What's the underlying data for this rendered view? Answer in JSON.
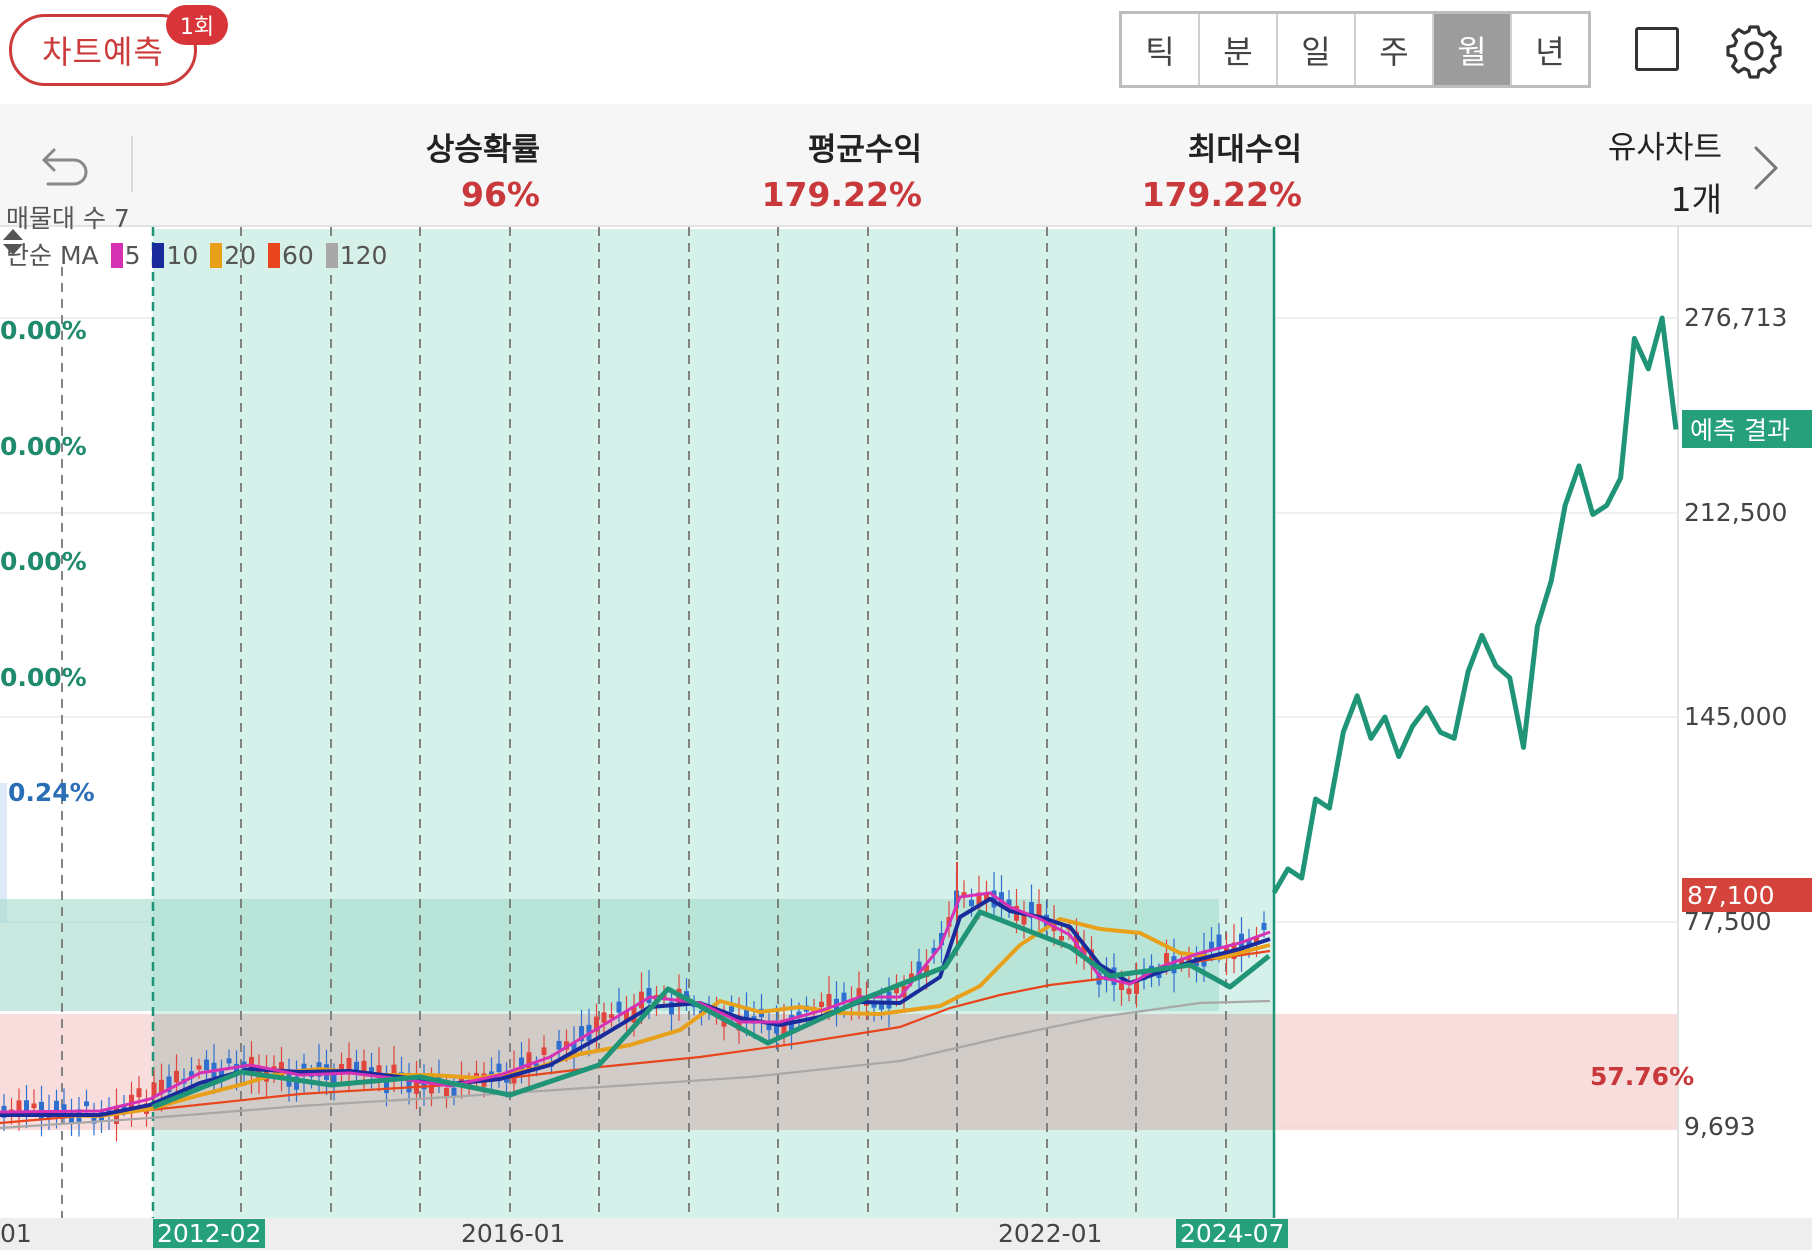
{
  "topbar": {
    "predict_label": "차트예측",
    "predict_count": "1회",
    "periods": [
      "틱",
      "분",
      "일",
      "주",
      "월",
      "년"
    ],
    "active_period": "월",
    "icons": [
      "square-icon",
      "gear-icon"
    ]
  },
  "stats": {
    "rise_probability": {
      "label": "상승확률",
      "value": "96%"
    },
    "avg_return": {
      "label": "평균수익",
      "value": "179.22%"
    },
    "max_return": {
      "label": "최대수익",
      "value": "179.22%"
    },
    "similar_charts": {
      "label": "유사차트",
      "value": "1개"
    },
    "icons": [
      "undo-icon",
      "chevron-right-icon"
    ]
  },
  "legend": {
    "volume_profile": "매물대 수 7",
    "ma_label": "단순 MA",
    "ma_items": [
      {
        "period": "5",
        "color": "#d631b5"
      },
      {
        "period": "10",
        "color": "#1a2b9c"
      },
      {
        "period": "20",
        "color": "#e8a01a"
      },
      {
        "period": "60",
        "color": "#e8451d"
      },
      {
        "period": "120",
        "color": "#a8a8a8"
      }
    ]
  },
  "left_percent_labels": [
    "0.00%",
    "0.00%",
    "0.00%",
    "0.00%",
    "0.24%"
  ],
  "colors": {
    "accent_red": "#c9383a",
    "prediction_green": "#1f9476",
    "highlight_band": "#d6f0ea",
    "badge_green": "#25a07b",
    "badge_red": "#d5433d"
  },
  "chart_data": {
    "type": "line",
    "y_axis_ticks": [
      "276,713",
      "212,500",
      "145,000",
      "77,500",
      "9,693"
    ],
    "current_price_label": "87,100",
    "prediction_label": "예측 결과",
    "zone_percent_label": "57.76%",
    "x_axis_labels": [
      "01",
      "2012-02",
      "2016-01",
      "2022-01",
      "2024-07"
    ],
    "highlighted_range": [
      "2012-02",
      "2024-07"
    ],
    "prediction_series": {
      "values": [
        87100,
        95000,
        92000,
        118000,
        115000,
        140000,
        152000,
        138000,
        145000,
        132000,
        142000,
        148000,
        140000,
        138000,
        160000,
        172000,
        162000,
        158000,
        135000,
        175000,
        190000,
        215000,
        228000,
        212000,
        215000,
        224000,
        270000,
        260000,
        276713,
        240000
      ]
    }
  }
}
